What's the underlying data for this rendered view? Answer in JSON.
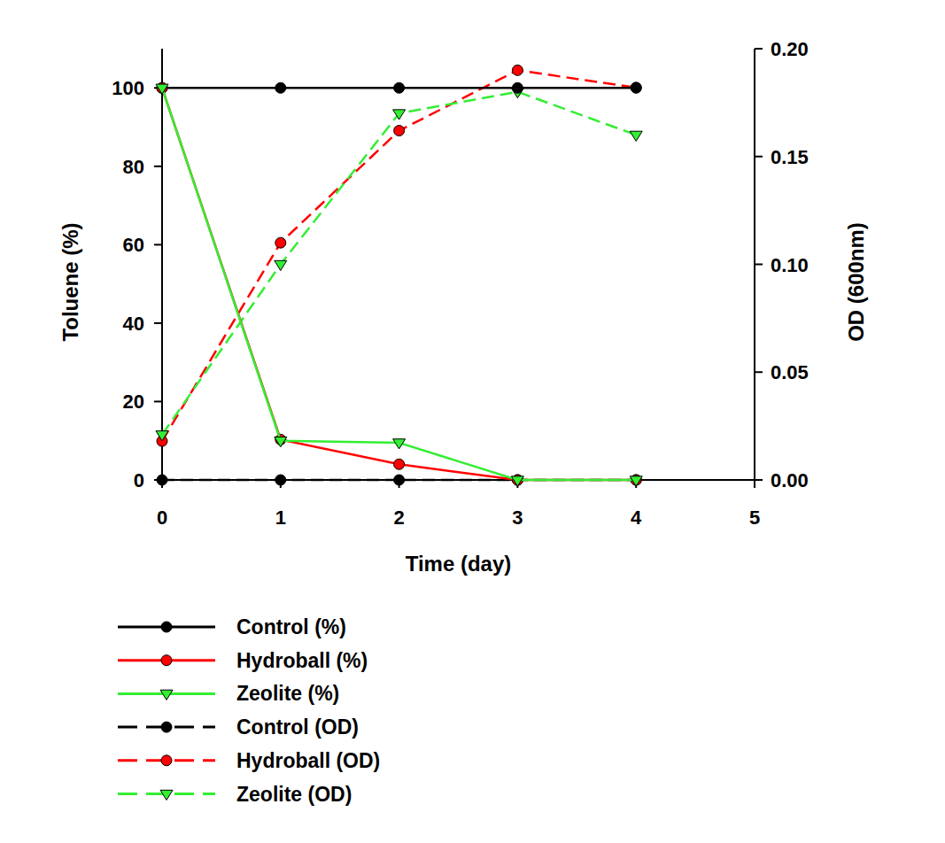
{
  "chart_data": {
    "type": "line",
    "x_label": "Time (day)",
    "y_label": "Toluene (%)",
    "y2_label": "OD (600nm)",
    "x": [
      0,
      1,
      2,
      3,
      4
    ],
    "xlim": [
      0,
      5
    ],
    "xticks": [
      0,
      1,
      2,
      3,
      4,
      5
    ],
    "ylim": [
      0,
      110
    ],
    "yticks": [
      0,
      20,
      40,
      60,
      80,
      100
    ],
    "y2lim": [
      0,
      0.2
    ],
    "y2ticks": [
      {
        "value": 0,
        "label": "0.00"
      },
      {
        "value": 0.05,
        "label": "0.05"
      },
      {
        "value": 0.1,
        "label": "0.10"
      },
      {
        "value": 0.15,
        "label": "0.15"
      },
      {
        "value": 0.2,
        "label": "0.20"
      }
    ],
    "grid": false,
    "legend": "bottom",
    "series": [
      {
        "name": "Control (%)",
        "color": "#000000",
        "marker": "circle",
        "line_style": "solid",
        "values": [
          100,
          100,
          100,
          100,
          100
        ]
      },
      {
        "name": "Hydroball (%)",
        "color": "#ff0000",
        "marker": "circle",
        "line_style": "solid",
        "values": [
          100,
          10.3,
          4,
          0,
          0
        ]
      },
      {
        "name": "Zeolite (%)",
        "color": "#33ee33",
        "marker": "triangle-down",
        "line_style": "solid",
        "values": [
          100,
          10,
          9.5,
          0,
          0
        ]
      },
      {
        "name": "Control (OD)",
        "color": "#000000",
        "marker": "circle",
        "line_style": "dashed",
        "axis": "y2",
        "values": [
          0,
          0,
          0,
          0,
          0
        ]
      },
      {
        "name": "Hydroball (OD)",
        "color": "#ff0000",
        "marker": "circle",
        "line_style": "dashed",
        "axis": "y2",
        "values": [
          0.018,
          0.11,
          0.162,
          0.19,
          0.182
        ]
      },
      {
        "name": "Zeolite (OD)",
        "color": "#33ee33",
        "marker": "triangle-down",
        "line_style": "dashed",
        "axis": "y2",
        "values": [
          0.021,
          0.1,
          0.17,
          0.18,
          0.16
        ]
      }
    ]
  }
}
